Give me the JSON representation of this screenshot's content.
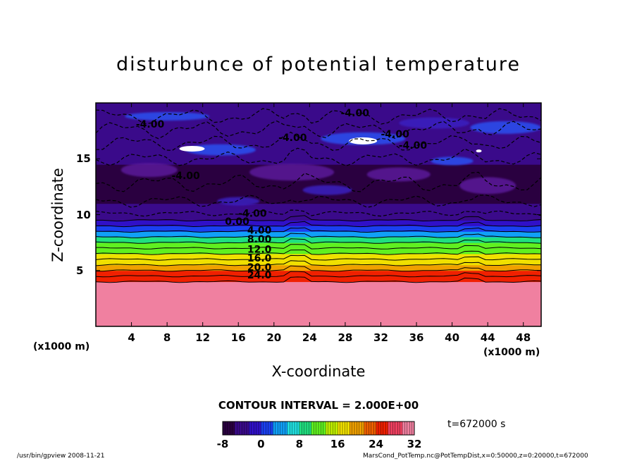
{
  "chart_data": {
    "type": "heatmap",
    "title": "disturbunce of potential temperature",
    "xlabel": "X-coordinate",
    "ylabel": "Z-coordinate",
    "x_unit_left": "(x1000 m)",
    "x_unit_right": "(x1000 m)",
    "xlim": [
      0,
      50
    ],
    "ylim": [
      0,
      20
    ],
    "x_ticks": [
      4,
      8,
      12,
      16,
      20,
      24,
      28,
      32,
      36,
      40,
      44,
      48
    ],
    "y_ticks": [
      5,
      10,
      15
    ],
    "contour_interval": "CONTOUR INTERVAL = 2.000E+00",
    "time": "t=672000 s",
    "colorbar": {
      "range": [
        -8,
        32
      ],
      "ticks": [
        "-8",
        "0",
        "8",
        "16",
        "24",
        "32"
      ]
    },
    "contour_labels": [
      {
        "text": "-4.00",
        "x": 4.5,
        "y": 17.8
      },
      {
        "text": "-4.00",
        "x": 20.5,
        "y": 16.6
      },
      {
        "text": "-4.00",
        "x": 27.5,
        "y": 18.8
      },
      {
        "text": "-4.00",
        "x": 32,
        "y": 16.9
      },
      {
        "text": "-4.00",
        "x": 34,
        "y": 15.9
      },
      {
        "text": "-4.00",
        "x": 8.5,
        "y": 13.2
      },
      {
        "text": "-4.00",
        "x": 16,
        "y": 9.8
      },
      {
        "text": "0.00",
        "x": 14.5,
        "y": 9.1
      },
      {
        "text": "4.00",
        "x": 17,
        "y": 8.3
      },
      {
        "text": "8.00",
        "x": 17,
        "y": 7.5
      },
      {
        "text": "12.0",
        "x": 17,
        "y": 6.6
      },
      {
        "text": "16.0",
        "x": 17,
        "y": 5.8
      },
      {
        "text": "20.0",
        "x": 17,
        "y": 5.0
      },
      {
        "text": "24.0",
        "x": 17,
        "y": 4.3
      }
    ],
    "layers": [
      {
        "z_from": 0,
        "z_to": 4.0,
        "value": 32
      },
      {
        "z_from": 4.0,
        "z_to": 4.5,
        "value": 26
      },
      {
        "z_from": 4.5,
        "z_to": 5.0,
        "value": 24
      },
      {
        "z_from": 5.0,
        "z_to": 5.5,
        "value": 21
      },
      {
        "z_from": 5.5,
        "z_to": 6.0,
        "value": 18
      },
      {
        "z_from": 6.0,
        "z_to": 6.5,
        "value": 16
      },
      {
        "z_from": 6.5,
        "z_to": 7.0,
        "value": 13
      },
      {
        "z_from": 7.0,
        "z_to": 7.5,
        "value": 11
      },
      {
        "z_from": 7.5,
        "z_to": 8.0,
        "value": 8
      },
      {
        "z_from": 8.0,
        "z_to": 8.5,
        "value": 5
      },
      {
        "z_from": 8.5,
        "z_to": 9.0,
        "value": 2
      },
      {
        "z_from": 9.0,
        "z_to": 9.5,
        "value": -1
      },
      {
        "z_from": 9.5,
        "z_to": 11.0,
        "value": -5
      },
      {
        "z_from": 11.0,
        "z_to": 14.5,
        "value": -7
      },
      {
        "z_from": 14.5,
        "z_to": 17.0,
        "value": -5
      },
      {
        "z_from": 17.0,
        "z_to": 19.0,
        "value": -4
      },
      {
        "z_from": 19.0,
        "z_to": 20.0,
        "value": -5
      }
    ],
    "grid": false,
    "legend": "colorbar-bottom"
  },
  "footer": {
    "left": "/usr/bin/gpview   2008-11-21",
    "right": "MarsCond_PotTemp.nc@PotTempDist,x=0:50000,z=0:20000,t=672000"
  },
  "colors": {
    "cmap": [
      "#2a0040",
      "#3a0a8a",
      "#3010c8",
      "#1a40f0",
      "#10a0f8",
      "#20e0e0",
      "#20e080",
      "#60f020",
      "#c0f000",
      "#f0e000",
      "#f0a000",
      "#f06000",
      "#f02000",
      "#f04060",
      "#f080a0"
    ]
  }
}
